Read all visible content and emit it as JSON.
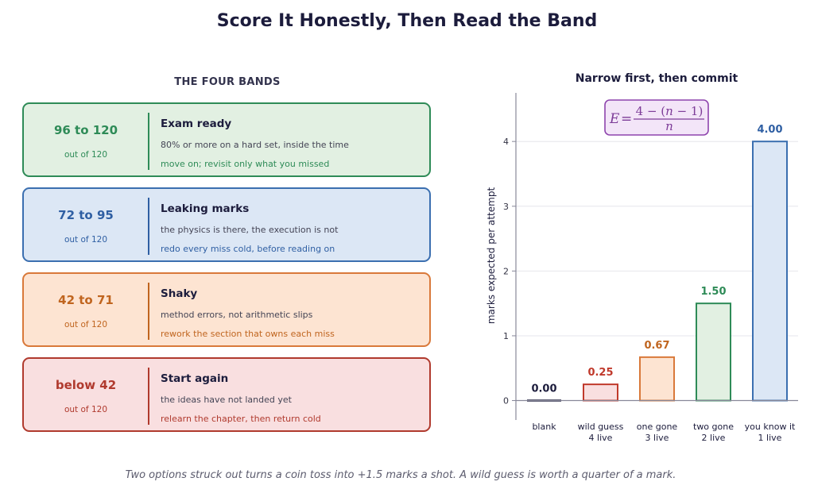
{
  "title": "Score It Honestly, Then Read the Band",
  "bands_heading": "THE FOUR BANDS",
  "bands": [
    {
      "range": "96 to 120",
      "out_of": "out of 120",
      "title": "Exam ready",
      "desc": "80% or more on a hard set, inside the time",
      "action": "move on; revisit only what you missed",
      "accent": "#2e8b57",
      "fill": "#e2f0e2",
      "border": "#2e8b57"
    },
    {
      "range": "72 to 95",
      "out_of": "out of 120",
      "title": "Leaking marks",
      "desc": "the physics is there, the execution is not",
      "action": "redo every miss cold, before reading on",
      "accent": "#2f5fa3",
      "fill": "#dce7f5",
      "border": "#3b6fb0"
    },
    {
      "range": "42 to 71",
      "out_of": "out of 120",
      "title": "Shaky",
      "desc": "method errors, not arithmetic slips",
      "action": "rework the section that owns each miss",
      "accent": "#c0651f",
      "fill": "#fde4d2",
      "border": "#d9793a"
    },
    {
      "range": "below 42",
      "out_of": "out of 120",
      "title": "Start again",
      "desc": "the ideas have not landed yet",
      "action": "relearn the chapter, then return cold",
      "accent": "#b03a2e",
      "fill": "#f9dfe0",
      "border": "#b03a2e"
    }
  ],
  "chart_data": {
    "type": "bar",
    "title": "Narrow first, then commit",
    "ylabel": "marks expected per attempt",
    "xlabel": "",
    "categories": [
      [
        "blank"
      ],
      [
        "wild guess",
        "4 live"
      ],
      [
        "one gone",
        "3 live"
      ],
      [
        "two gone",
        "2 live"
      ],
      [
        "you know it",
        "1 live"
      ]
    ],
    "values": [
      0.0,
      0.25,
      0.67,
      1.5,
      4.0
    ],
    "value_labels": [
      "0.00",
      "0.25",
      "0.67",
      "1.50",
      "4.00"
    ],
    "ylim": [
      -0.3,
      4.75
    ],
    "yticks": [
      0,
      1,
      2,
      3,
      4
    ],
    "grid": true,
    "formula": "E = (4 − (n − 1)) / n",
    "bar_colors": [
      {
        "fill": "#1c1c3c",
        "stroke": "#1c1c3c",
        "label": "#1c1c3c"
      },
      {
        "fill": "#f9dfe0",
        "stroke": "#c0392b",
        "label": "#c0392b"
      },
      {
        "fill": "#fde4d2",
        "stroke": "#d9793a",
        "label": "#c0651f"
      },
      {
        "fill": "#e2f0e2",
        "stroke": "#2e8b57",
        "label": "#2e8b57"
      },
      {
        "fill": "#dce7f5",
        "stroke": "#3b6fb0",
        "label": "#2f5fa3"
      }
    ]
  },
  "caption": "Two options struck out turns a coin toss into +1.5 marks a shot. A wild guess is worth a quarter of a mark."
}
